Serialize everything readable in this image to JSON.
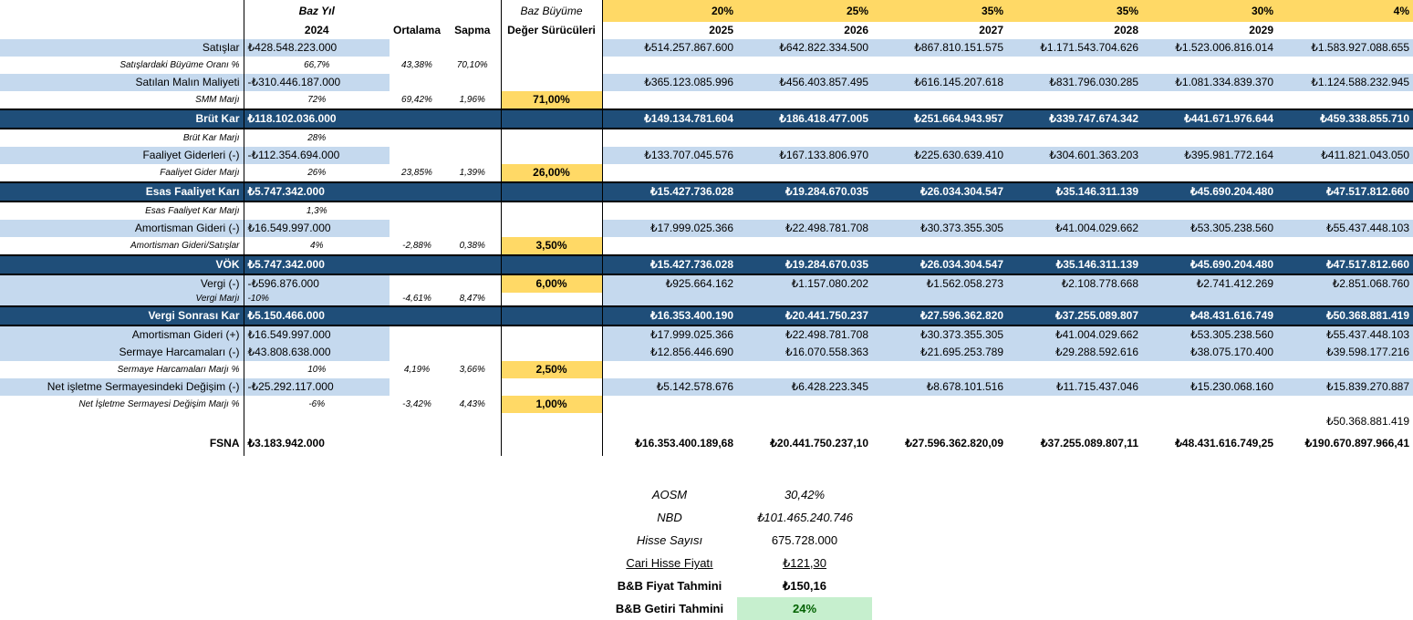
{
  "header": {
    "base_year_label": "Baz Yıl",
    "base_year": "2024",
    "average_label": "Ortalama",
    "deviation_label": "Sapma",
    "base_growth_label": "Baz Büyüme",
    "value_drivers_label": "Değer Sürücüleri",
    "growth_rates": [
      "20%",
      "25%",
      "35%",
      "35%",
      "30%",
      "4%"
    ],
    "years": [
      "2025",
      "2026",
      "2027",
      "2028",
      "2029",
      ""
    ]
  },
  "rows": [
    {
      "label": "Satışlar",
      "base": "₺428.548.223.000",
      "avg": "",
      "dev": "",
      "driver": "",
      "values": [
        "₺514.257.867.600",
        "₺642.822.334.500",
        "₺867.810.151.575",
        "₺1.171.543.704.626",
        "₺1.523.006.816.014",
        "₺1.583.927.088.655"
      ]
    },
    {
      "label": "Satışlardaki Büyüme Oranı %",
      "base": "66,7%",
      "avg": "43,38%",
      "dev": "70,10%",
      "driver": "",
      "values": [
        "",
        "",
        "",
        "",
        "",
        ""
      ]
    },
    {
      "label": "Satılan Malın Maliyeti",
      "base": "-₺310.446.187.000",
      "avg": "",
      "dev": "",
      "driver": "",
      "values": [
        "₺365.123.085.996",
        "₺456.403.857.495",
        "₺616.145.207.618",
        "₺831.796.030.285",
        "₺1.081.334.839.370",
        "₺1.124.588.232.945"
      ]
    },
    {
      "label": "SMM Marjı",
      "base": "72%",
      "avg": "69,42%",
      "dev": "1,96%",
      "driver": "71,00%",
      "values": [
        "",
        "",
        "",
        "",
        "",
        ""
      ]
    },
    {
      "label": "Brüt Kar",
      "base": "₺118.102.036.000",
      "avg": "",
      "dev": "",
      "driver": "",
      "values": [
        "₺149.134.781.604",
        "₺186.418.477.005",
        "₺251.664.943.957",
        "₺339.747.674.342",
        "₺441.671.976.644",
        "₺459.338.855.710"
      ]
    },
    {
      "label": "Brüt Kar Marjı",
      "base": "28%",
      "avg": "",
      "dev": "",
      "driver": "",
      "values": [
        "",
        "",
        "",
        "",
        "",
        ""
      ]
    },
    {
      "label": "Faaliyet Giderleri (-)",
      "base": "-₺112.354.694.000",
      "avg": "",
      "dev": "",
      "driver": "",
      "values": [
        "₺133.707.045.576",
        "₺167.133.806.970",
        "₺225.630.639.410",
        "₺304.601.363.203",
        "₺395.981.772.164",
        "₺411.821.043.050"
      ]
    },
    {
      "label": "Faaliyet Gider Marjı",
      "base": "26%",
      "avg": "23,85%",
      "dev": "1,39%",
      "driver": "26,00%",
      "values": [
        "",
        "",
        "",
        "",
        "",
        ""
      ]
    },
    {
      "label": "Esas Faaliyet Karı",
      "base": "₺5.747.342.000",
      "avg": "",
      "dev": "",
      "driver": "",
      "values": [
        "₺15.427.736.028",
        "₺19.284.670.035",
        "₺26.034.304.547",
        "₺35.146.311.139",
        "₺45.690.204.480",
        "₺47.517.812.660"
      ]
    },
    {
      "label": "Esas Faaliyet Kar Marjı",
      "base": "1,3%",
      "avg": "",
      "dev": "",
      "driver": "",
      "values": [
        "",
        "",
        "",
        "",
        "",
        ""
      ]
    },
    {
      "label": "Amortisman Gideri (-)",
      "base": "₺16.549.997.000",
      "avg": "",
      "dev": "",
      "driver": "",
      "values": [
        "₺17.999.025.366",
        "₺22.498.781.708",
        "₺30.373.355.305",
        "₺41.004.029.662",
        "₺53.305.238.560",
        "₺55.437.448.103"
      ]
    },
    {
      "label": "Amortisman Gideri/Satışlar",
      "base": "4%",
      "avg": "-2,88%",
      "dev": "0,38%",
      "driver": "3,50%",
      "values": [
        "",
        "",
        "",
        "",
        "",
        ""
      ]
    },
    {
      "label": "VÖK",
      "base": "₺5.747.342.000",
      "avg": "",
      "dev": "",
      "driver": "",
      "values": [
        "₺15.427.736.028",
        "₺19.284.670.035",
        "₺26.034.304.547",
        "₺35.146.311.139",
        "₺45.690.204.480",
        "₺47.517.812.660"
      ]
    },
    {
      "label": "Vergi (-)",
      "base": "-₺596.876.000",
      "avg": "",
      "dev": "",
      "driver": "6,00%",
      "values": [
        "₺925.664.162",
        "₺1.157.080.202",
        "₺1.562.058.273",
        "₺2.108.778.668",
        "₺2.741.412.269",
        "₺2.851.068.760"
      ]
    },
    {
      "label": "Vergi Marjı",
      "base": "-10%",
      "avg": "-4,61%",
      "dev": "8,47%",
      "driver": "",
      "values": [
        "",
        "",
        "",
        "",
        "",
        ""
      ]
    },
    {
      "label": "Vergi Sonrası Kar",
      "base": "₺5.150.466.000",
      "avg": "",
      "dev": "",
      "driver": "",
      "values": [
        "₺16.353.400.190",
        "₺20.441.750.237",
        "₺27.596.362.820",
        "₺37.255.089.807",
        "₺48.431.616.749",
        "₺50.368.881.419"
      ]
    },
    {
      "label": "Amortisman Gideri (+)",
      "base": "₺16.549.997.000",
      "avg": "",
      "dev": "",
      "driver": "",
      "values": [
        "₺17.999.025.366",
        "₺22.498.781.708",
        "₺30.373.355.305",
        "₺41.004.029.662",
        "₺53.305.238.560",
        "₺55.437.448.103"
      ]
    },
    {
      "label": "Sermaye Harcamaları (-)",
      "base": "₺43.808.638.000",
      "avg": "",
      "dev": "",
      "driver": "",
      "values": [
        "₺12.856.446.690",
        "₺16.070.558.363",
        "₺21.695.253.789",
        "₺29.288.592.616",
        "₺38.075.170.400",
        "₺39.598.177.216"
      ]
    },
    {
      "label": "Sermaye Harcamaları Marjı %",
      "base": "10%",
      "avg": "4,19%",
      "dev": "3,66%",
      "driver": "2,50%",
      "values": [
        "",
        "",
        "",
        "",
        "",
        ""
      ]
    },
    {
      "label": "Net işletme Sermayesindeki Değişim (-)",
      "base": "-₺25.292.117.000",
      "avg": "",
      "dev": "",
      "driver": "",
      "values": [
        "₺5.142.578.676",
        "₺6.428.223.345",
        "₺8.678.101.516",
        "₺11.715.437.046",
        "₺15.230.068.160",
        "₺15.839.270.887"
      ]
    },
    {
      "label": "Net İşletme Sermayesi Değişim Marjı %",
      "base": "-6%",
      "avg": "-3,42%",
      "dev": "4,43%",
      "driver": "1,00%",
      "values": [
        "",
        "",
        "",
        "",
        "",
        ""
      ]
    },
    {
      "label": "",
      "base": "",
      "avg": "",
      "dev": "",
      "driver": "",
      "values": [
        "",
        "",
        "",
        "",
        "",
        "₺50.368.881.419"
      ]
    },
    {
      "label": "FSNA",
      "base": "₺3.183.942.000",
      "avg": "",
      "dev": "",
      "driver": "",
      "values": [
        "₺16.353.400.189,68",
        "₺20.441.750.237,10",
        "₺27.596.362.820,09",
        "₺37.255.089.807,11",
        "₺48.431.616.749,25",
        "₺190.670.897.966,41"
      ]
    }
  ],
  "summary": {
    "aosm_label": "AOSM",
    "aosm": "30,42%",
    "nbd_label": "NBD",
    "nbd": "₺101.465.240.746",
    "shares_label": "Hisse Sayısı",
    "shares": "675.728.000",
    "price_label": "Cari Hisse Fiyatı",
    "price": "₺121,30",
    "target_label": "B&B Fiyat Tahmini",
    "target": "₺150,16",
    "return_label": "B&B Getiri Tahmini",
    "return": "24%"
  },
  "colors": {
    "dark_blue": "#1f4e79",
    "light_blue": "#c5d9ee",
    "gold": "#ffd966",
    "green_fill": "#c6efce",
    "green_text": "#006100"
  }
}
